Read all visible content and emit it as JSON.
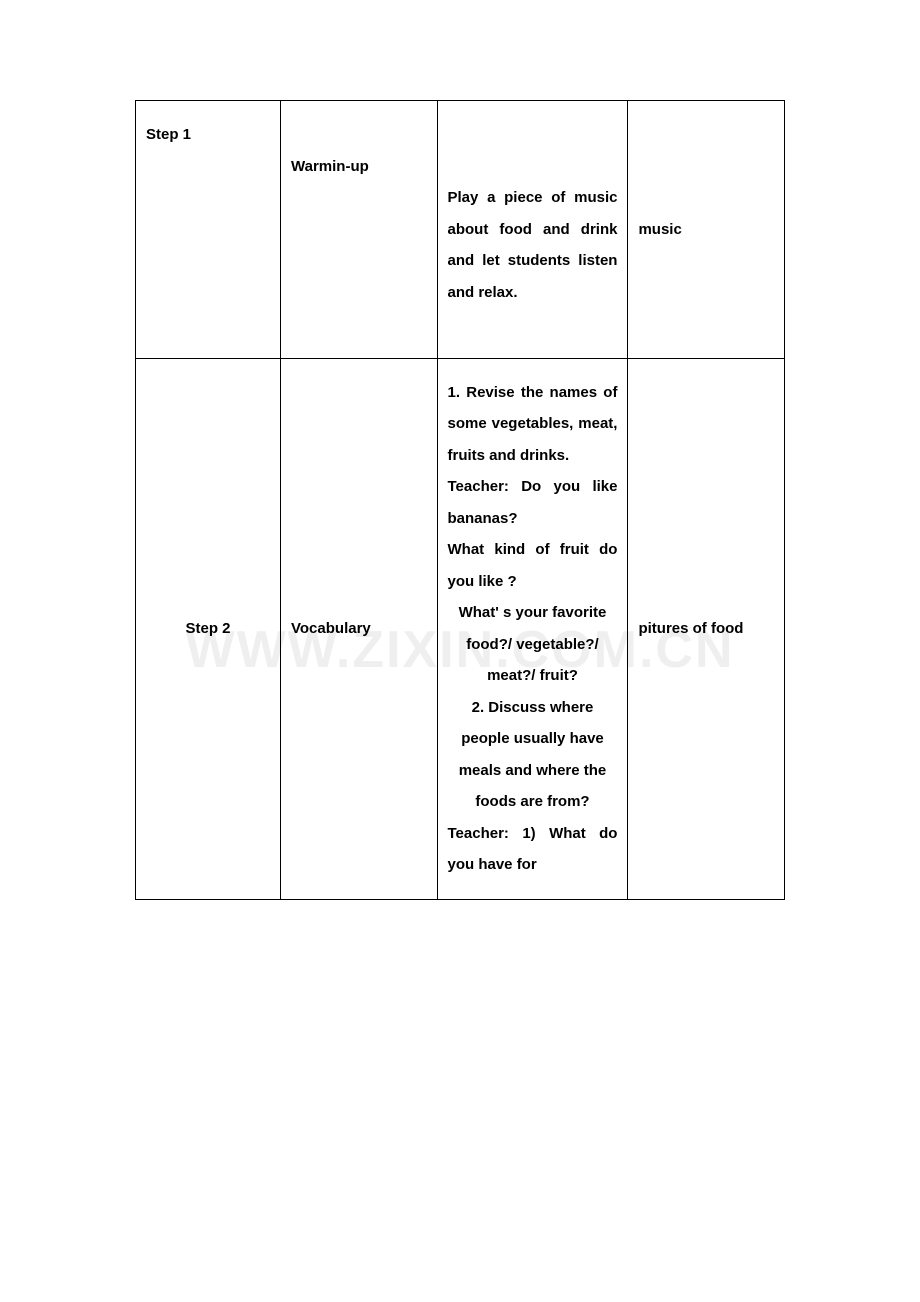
{
  "watermark": "WWW.ZIXIN.COM.CN",
  "rows": [
    {
      "step": "Step 1",
      "phase": "Warmin-up",
      "activity": "Play a piece of music about food and drink and let students listen and relax.",
      "material": "music"
    },
    {
      "step": "Step 2",
      "phase": "Vocabulary",
      "activity_part1": "1. Revise the names of some vegetables, meat, fruits and drinks.",
      "activity_q1a": "Teacher: Do you like bananas?",
      "activity_q1b": "What kind of fruit do you like ?",
      "activity_center": "What' s your favorite food?/ vegetable?/ meat?/ fruit?",
      "activity_part2": "2. Discuss where people usually have meals and where the foods are from?",
      "activity_q2": "Teacher: 1) What do you have  for",
      "material": "pitures of food"
    }
  ],
  "colors": {
    "border": "#000000",
    "text": "#000000",
    "background": "#ffffff",
    "watermark": "#dcdcdc"
  },
  "fonts": {
    "body": "Comic Sans MS",
    "size_pt": 11
  }
}
